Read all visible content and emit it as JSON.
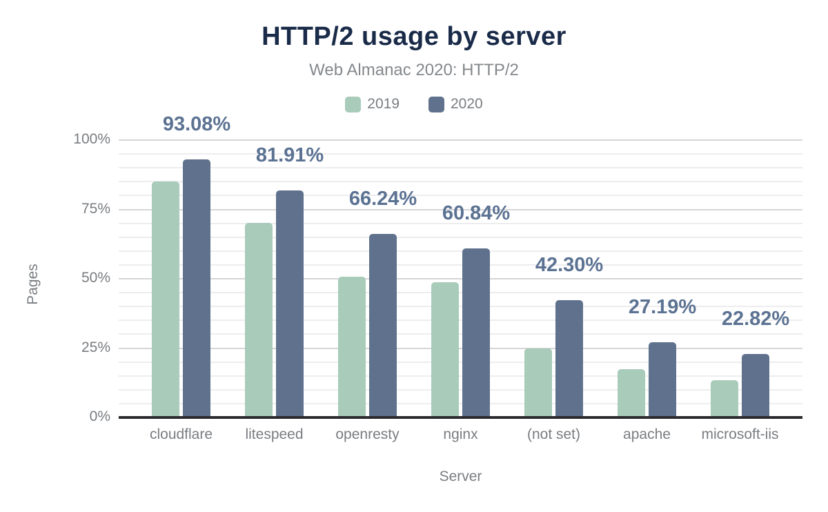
{
  "colors": {
    "title": "#1a2b49",
    "subtitle": "#84888c",
    "axis_text": "#797d81",
    "data_label": "#5b7292",
    "grid_major": "#d6d6d8",
    "grid_minor": "#ededef",
    "baseline": "#2b2b2e",
    "series_2019": "#a9cbba",
    "series_2020": "#5f718c"
  },
  "chart_data": {
    "type": "bar",
    "title": "HTTP/2 usage by server",
    "subtitle": "Web Almanac 2020: HTTP/2",
    "xlabel": "Server",
    "ylabel": "Pages",
    "categories": [
      "cloudflare",
      "litespeed",
      "openresty",
      "nginx",
      "(not set)",
      "apache",
      "microsoft-iis"
    ],
    "series": [
      {
        "name": "2019",
        "color": "#a9cbba",
        "values": [
          85.1,
          70.1,
          50.7,
          48.8,
          25.0,
          17.4,
          13.4
        ]
      },
      {
        "name": "2020",
        "color": "#5f718c",
        "values": [
          93.08,
          81.91,
          66.24,
          60.84,
          42.3,
          27.19,
          22.82
        ],
        "data_labels": [
          "93.08%",
          "81.91%",
          "66.24%",
          "60.84%",
          "42.30%",
          "27.19%",
          "22.82%"
        ]
      }
    ],
    "ylim": [
      0,
      100
    ],
    "yticks": [
      0,
      25,
      50,
      75,
      100
    ],
    "ytick_labels": [
      "0%",
      "25%",
      "50%",
      "75%",
      "100%"
    ],
    "minor_grid_step": 5,
    "grid": true,
    "legend_position": "top"
  }
}
